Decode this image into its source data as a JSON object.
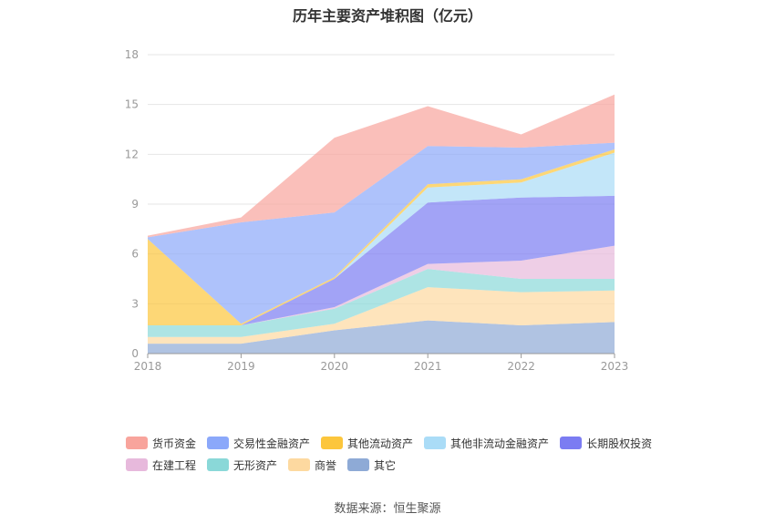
{
  "title": "历年主要资产堆积图（亿元）",
  "source": "数据来源：恒生聚源",
  "chart_data": {
    "type": "area",
    "stacked": true,
    "x": [
      "2018",
      "2019",
      "2020",
      "2021",
      "2022",
      "2023"
    ],
    "ylim": [
      0,
      18
    ],
    "yticks": [
      "0",
      "3",
      "6",
      "9",
      "12",
      "15",
      "18"
    ],
    "grid": true,
    "legend_position": "bottom",
    "series": [
      {
        "name": "其它",
        "color": "#8eaad6",
        "values": [
          0.6,
          0.6,
          1.4,
          2.0,
          1.7,
          1.9
        ]
      },
      {
        "name": "商誉",
        "color": "#fdd9a0",
        "values": [
          0.4,
          0.4,
          0.4,
          2.0,
          2.0,
          1.9
        ]
      },
      {
        "name": "无形资产",
        "color": "#8ad8d8",
        "values": [
          0.7,
          0.7,
          0.9,
          1.1,
          0.8,
          0.7
        ]
      },
      {
        "name": "在建工程",
        "color": "#e7b9dc",
        "values": [
          0.0,
          0.0,
          0.1,
          0.3,
          1.1,
          2.0
        ]
      },
      {
        "name": "长期股权投资",
        "color": "#7b7cf2",
        "values": [
          0.0,
          0.0,
          1.7,
          3.7,
          3.8,
          3.0
        ]
      },
      {
        "name": "其他非流动金融资产",
        "color": "#aadcf7",
        "values": [
          0.0,
          0.0,
          0.0,
          0.9,
          0.9,
          2.6
        ]
      },
      {
        "name": "其他流动资产",
        "color": "#fcc63c",
        "values": [
          5.2,
          0.1,
          0.1,
          0.2,
          0.2,
          0.2
        ]
      },
      {
        "name": "交易性金融资产",
        "color": "#8ba8fa",
        "values": [
          0.1,
          6.1,
          3.9,
          2.3,
          1.9,
          0.4
        ]
      },
      {
        "name": "货币资金",
        "color": "#f8a49c",
        "values": [
          0.1,
          0.3,
          4.5,
          2.4,
          0.8,
          2.9
        ]
      }
    ],
    "legend_order": [
      "货币资金",
      "交易性金融资产",
      "其他流动资产",
      "其他非流动金融资产",
      "长期股权投资",
      "在建工程",
      "无形资产",
      "商誉",
      "其它"
    ]
  }
}
